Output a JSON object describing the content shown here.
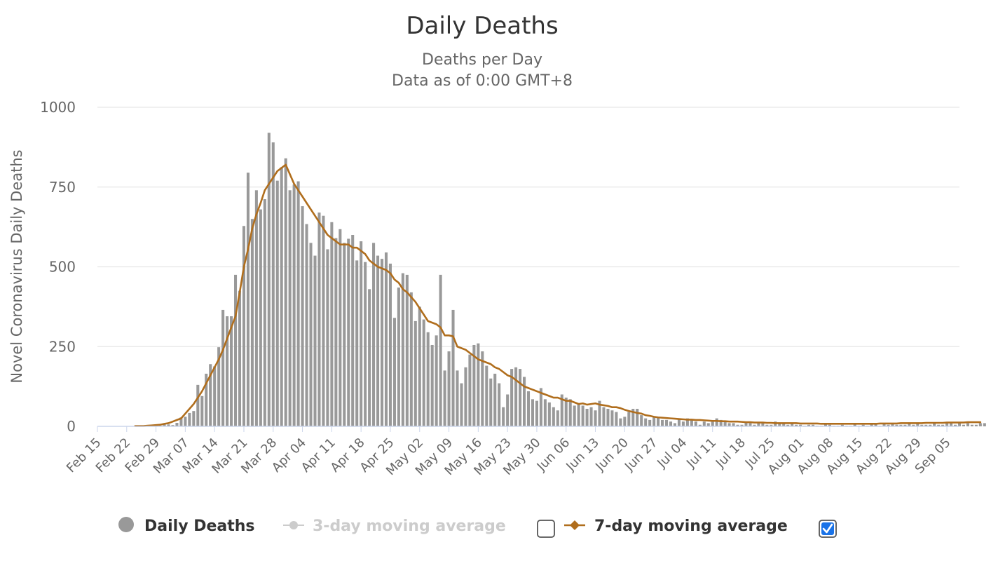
{
  "chart_data": {
    "type": "bar",
    "title": "Daily Deaths",
    "subtitle_lines": [
      "Deaths per Day",
      "Data as of 0:00 GMT+8"
    ],
    "ylabel": "Novel Coronavirus Daily Deaths",
    "xlabel": "",
    "ylim": [
      0,
      1000
    ],
    "yticks": [
      0,
      250,
      500,
      750,
      1000
    ],
    "grid": true,
    "legend_position": "bottom-center",
    "x_range": [
      "2020-02-15",
      "2020-09-08"
    ],
    "xtick_labels": [
      "Feb 15",
      "Feb 22",
      "Feb 29",
      "Mar 07",
      "Mar 14",
      "Mar 21",
      "Mar 28",
      "Apr 04",
      "Apr 11",
      "Apr 18",
      "Apr 25",
      "May 02",
      "May 09",
      "May 16",
      "May 23",
      "May 30",
      "Jun 06",
      "Jun 13",
      "Jun 20",
      "Jun 27",
      "Jul 04",
      "Jul 11",
      "Jul 18",
      "Jul 25",
      "Aug 01",
      "Aug 08",
      "Aug 15",
      "Aug 22",
      "Aug 29",
      "Sep 05"
    ],
    "series": [
      {
        "name": "Daily Deaths",
        "kind": "bar",
        "color": "#999999",
        "start_date": "2020-02-24",
        "values": [
          0,
          1,
          0,
          1,
          0,
          5,
          2,
          7,
          6,
          4,
          11,
          28,
          30,
          42,
          48,
          130,
          95,
          165,
          195,
          188,
          248,
          365,
          345,
          345,
          475,
          425,
          628,
          795,
          650,
          740,
          680,
          712,
          920,
          890,
          770,
          812,
          840,
          740,
          758,
          768,
          690,
          634,
          575,
          535,
          670,
          660,
          555,
          640,
          590,
          618,
          575,
          588,
          600,
          520,
          580,
          515,
          430,
          575,
          535,
          525,
          545,
          510,
          340,
          435,
          480,
          475,
          420,
          330,
          375,
          335,
          295,
          255,
          285,
          475,
          175,
          235,
          365,
          175,
          135,
          185,
          225,
          255,
          260,
          235,
          190,
          150,
          165,
          135,
          60,
          100,
          180,
          185,
          180,
          155,
          110,
          85,
          80,
          120,
          85,
          75,
          60,
          50,
          100,
          90,
          85,
          65,
          70,
          65,
          55,
          60,
          50,
          80,
          60,
          55,
          50,
          45,
          25,
          30,
          45,
          55,
          55,
          35,
          25,
          20,
          30,
          30,
          20,
          20,
          15,
          10,
          25,
          15,
          25,
          20,
          15,
          5,
          15,
          10,
          15,
          25,
          20,
          15,
          10,
          10,
          5,
          5,
          15,
          10,
          5,
          10,
          10,
          5,
          5,
          15,
          10,
          10,
          5,
          10,
          5,
          5,
          2,
          5,
          5,
          2,
          2,
          10,
          5,
          2,
          2,
          5,
          2,
          2,
          10,
          2,
          5,
          2,
          10,
          10,
          2,
          10,
          5,
          10,
          5,
          5,
          5,
          10,
          5,
          10,
          5,
          5,
          5,
          10,
          5,
          5,
          10,
          10,
          5,
          10,
          5,
          10,
          5,
          5,
          10,
          10
        ]
      },
      {
        "name": "3-day moving average",
        "kind": "line",
        "visible": false,
        "color": "#cccccc",
        "values": []
      },
      {
        "name": "7-day moving average",
        "kind": "line",
        "color": "#b06e1d",
        "start_date": "2020-02-24",
        "values": [
          1,
          1,
          1,
          2,
          3,
          4,
          5,
          8,
          10,
          15,
          20,
          25,
          40,
          55,
          70,
          90,
          110,
          135,
          160,
          185,
          210,
          240,
          275,
          310,
          345,
          420,
          500,
          555,
          620,
          665,
          700,
          740,
          760,
          780,
          800,
          810,
          820,
          790,
          760,
          740,
          720,
          700,
          680,
          660,
          640,
          620,
          600,
          590,
          580,
          570,
          570,
          570,
          560,
          560,
          550,
          540,
          520,
          510,
          500,
          495,
          490,
          480,
          460,
          450,
          430,
          420,
          405,
          390,
          370,
          350,
          330,
          325,
          320,
          310,
          285,
          285,
          282,
          250,
          245,
          240,
          230,
          220,
          210,
          205,
          200,
          195,
          185,
          180,
          170,
          160,
          155,
          145,
          135,
          125,
          120,
          115,
          110,
          105,
          100,
          95,
          90,
          90,
          85,
          80,
          80,
          75,
          70,
          72,
          68,
          70,
          72,
          68,
          66,
          64,
          60,
          60,
          57,
          52,
          48,
          45,
          42,
          40,
          35,
          33,
          30,
          28,
          27,
          26,
          25,
          24,
          23,
          22,
          21,
          21,
          20,
          20,
          19,
          18,
          17,
          17,
          16,
          16,
          15,
          15,
          15,
          14,
          13,
          13,
          12,
          12,
          12,
          11,
          11,
          10,
          10,
          10,
          10,
          10,
          10,
          9,
          9,
          9,
          9,
          9,
          8,
          8,
          8,
          8,
          8,
          8,
          8,
          8,
          8,
          8,
          8,
          8,
          8,
          8,
          9,
          9,
          9,
          9,
          9,
          10,
          10,
          10,
          10,
          10,
          10,
          11,
          11,
          11,
          11,
          11,
          12,
          12,
          12,
          12,
          12,
          13,
          13,
          13,
          13
        ]
      }
    ]
  },
  "legend": {
    "items": [
      {
        "label": "Daily Deaths",
        "icon": "circle",
        "color": "#999999",
        "enabled": true
      },
      {
        "label": "3-day moving average",
        "icon": "line-circle",
        "color": "#cccccc",
        "enabled": false,
        "checkbox": false
      },
      {
        "label": "7-day moving average",
        "icon": "line-diamond",
        "color": "#b06e1d",
        "enabled": true,
        "checkbox": true
      }
    ],
    "checkbox_color": "#1a73e8"
  }
}
